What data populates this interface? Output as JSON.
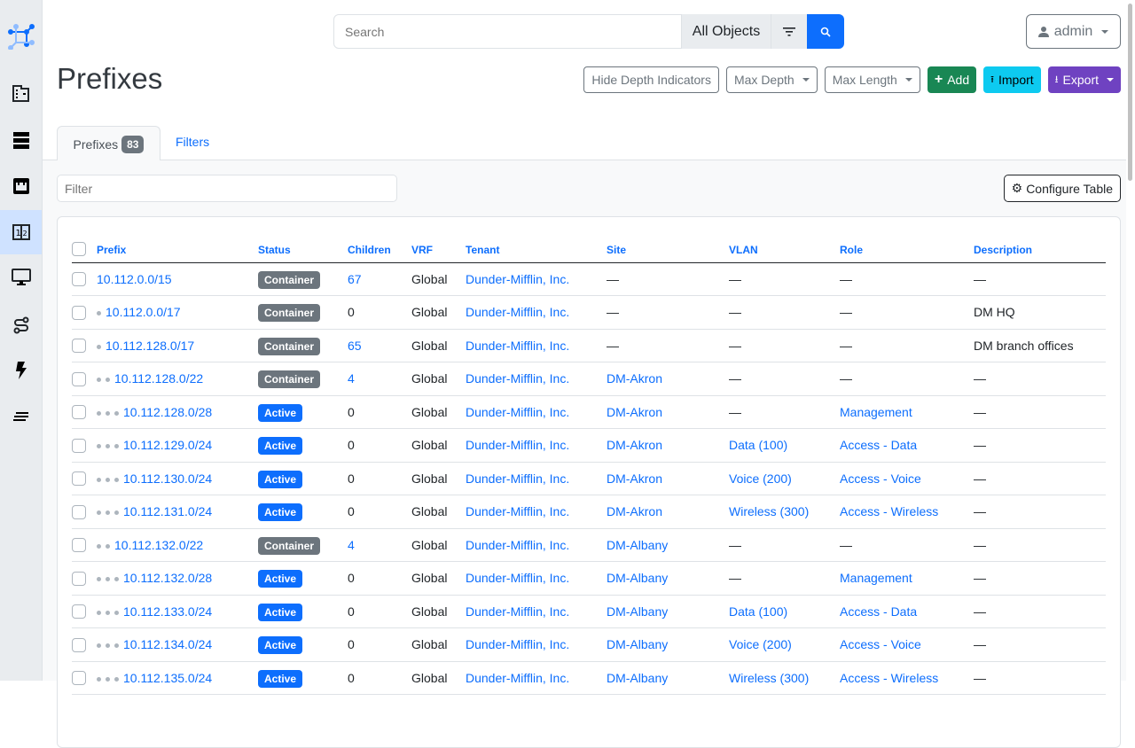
{
  "sidebar": {
    "items": [
      {
        "name": "organization",
        "icon": "building-icon"
      },
      {
        "name": "devices",
        "icon": "server-icon"
      },
      {
        "name": "connections",
        "icon": "ethernet-icon"
      },
      {
        "name": "ipam",
        "icon": "counter-icon",
        "active": true
      },
      {
        "name": "virtualization",
        "icon": "monitor-icon"
      },
      {
        "name": "circuits",
        "icon": "transit-connection-icon"
      },
      {
        "name": "power",
        "icon": "lightning-icon"
      },
      {
        "name": "other",
        "icon": "notes-icon"
      }
    ]
  },
  "header": {
    "search_placeholder": "Search",
    "search_scope": "All Objects",
    "user": "admin"
  },
  "page": {
    "title": "Prefixes",
    "buttons": {
      "hide_depth": "Hide Depth Indicators",
      "max_depth": "Max Depth",
      "max_length": "Max Length",
      "add": "Add",
      "import": "Import",
      "export": "Export"
    }
  },
  "tabs": {
    "prefixes": "Prefixes",
    "count": "83",
    "filters": "Filters"
  },
  "toolbar": {
    "filter_placeholder": "Filter",
    "configure": "Configure Table"
  },
  "colors": {
    "primary": "#0d6efd",
    "container": "#6c757d",
    "add": "#198754",
    "import": "#0dcaf0",
    "export": "#6f42c1"
  },
  "table": {
    "columns": [
      "Prefix",
      "Status",
      "Children",
      "VRF",
      "Tenant",
      "Site",
      "VLAN",
      "Role",
      "Description"
    ],
    "rows": [
      {
        "depth": 0,
        "prefix": "10.112.0.0/15",
        "status": "Container",
        "children": "67",
        "vrf": "Global",
        "tenant": "Dunder-Mifflin, Inc.",
        "site": "—",
        "vlan": "—",
        "role": "—",
        "description": "—"
      },
      {
        "depth": 1,
        "prefix": "10.112.0.0/17",
        "status": "Container",
        "children": "0",
        "vrf": "Global",
        "tenant": "Dunder-Mifflin, Inc.",
        "site": "—",
        "vlan": "—",
        "role": "—",
        "description": "DM HQ"
      },
      {
        "depth": 1,
        "prefix": "10.112.128.0/17",
        "status": "Container",
        "children": "65",
        "vrf": "Global",
        "tenant": "Dunder-Mifflin, Inc.",
        "site": "—",
        "vlan": "—",
        "role": "—",
        "description": "DM branch offices"
      },
      {
        "depth": 2,
        "prefix": "10.112.128.0/22",
        "status": "Container",
        "children": "4",
        "vrf": "Global",
        "tenant": "Dunder-Mifflin, Inc.",
        "site": "DM-Akron",
        "vlan": "—",
        "role": "—",
        "description": "—"
      },
      {
        "depth": 3,
        "prefix": "10.112.128.0/28",
        "status": "Active",
        "children": "0",
        "vrf": "Global",
        "tenant": "Dunder-Mifflin, Inc.",
        "site": "DM-Akron",
        "vlan": "—",
        "role": "Management",
        "description": "—"
      },
      {
        "depth": 3,
        "prefix": "10.112.129.0/24",
        "status": "Active",
        "children": "0",
        "vrf": "Global",
        "tenant": "Dunder-Mifflin, Inc.",
        "site": "DM-Akron",
        "vlan": "Data (100)",
        "role": "Access - Data",
        "description": "—"
      },
      {
        "depth": 3,
        "prefix": "10.112.130.0/24",
        "status": "Active",
        "children": "0",
        "vrf": "Global",
        "tenant": "Dunder-Mifflin, Inc.",
        "site": "DM-Akron",
        "vlan": "Voice (200)",
        "role": "Access - Voice",
        "description": "—"
      },
      {
        "depth": 3,
        "prefix": "10.112.131.0/24",
        "status": "Active",
        "children": "0",
        "vrf": "Global",
        "tenant": "Dunder-Mifflin, Inc.",
        "site": "DM-Akron",
        "vlan": "Wireless (300)",
        "role": "Access - Wireless",
        "description": "—"
      },
      {
        "depth": 2,
        "prefix": "10.112.132.0/22",
        "status": "Container",
        "children": "4",
        "vrf": "Global",
        "tenant": "Dunder-Mifflin, Inc.",
        "site": "DM-Albany",
        "vlan": "—",
        "role": "—",
        "description": "—"
      },
      {
        "depth": 3,
        "prefix": "10.112.132.0/28",
        "status": "Active",
        "children": "0",
        "vrf": "Global",
        "tenant": "Dunder-Mifflin, Inc.",
        "site": "DM-Albany",
        "vlan": "—",
        "role": "Management",
        "description": "—"
      },
      {
        "depth": 3,
        "prefix": "10.112.133.0/24",
        "status": "Active",
        "children": "0",
        "vrf": "Global",
        "tenant": "Dunder-Mifflin, Inc.",
        "site": "DM-Albany",
        "vlan": "Data (100)",
        "role": "Access - Data",
        "description": "—"
      },
      {
        "depth": 3,
        "prefix": "10.112.134.0/24",
        "status": "Active",
        "children": "0",
        "vrf": "Global",
        "tenant": "Dunder-Mifflin, Inc.",
        "site": "DM-Albany",
        "vlan": "Voice (200)",
        "role": "Access - Voice",
        "description": "—"
      },
      {
        "depth": 3,
        "prefix": "10.112.135.0/24",
        "status": "Active",
        "children": "0",
        "vrf": "Global",
        "tenant": "Dunder-Mifflin, Inc.",
        "site": "DM-Albany",
        "vlan": "Wireless (300)",
        "role": "Access - Wireless",
        "description": "—"
      }
    ]
  }
}
